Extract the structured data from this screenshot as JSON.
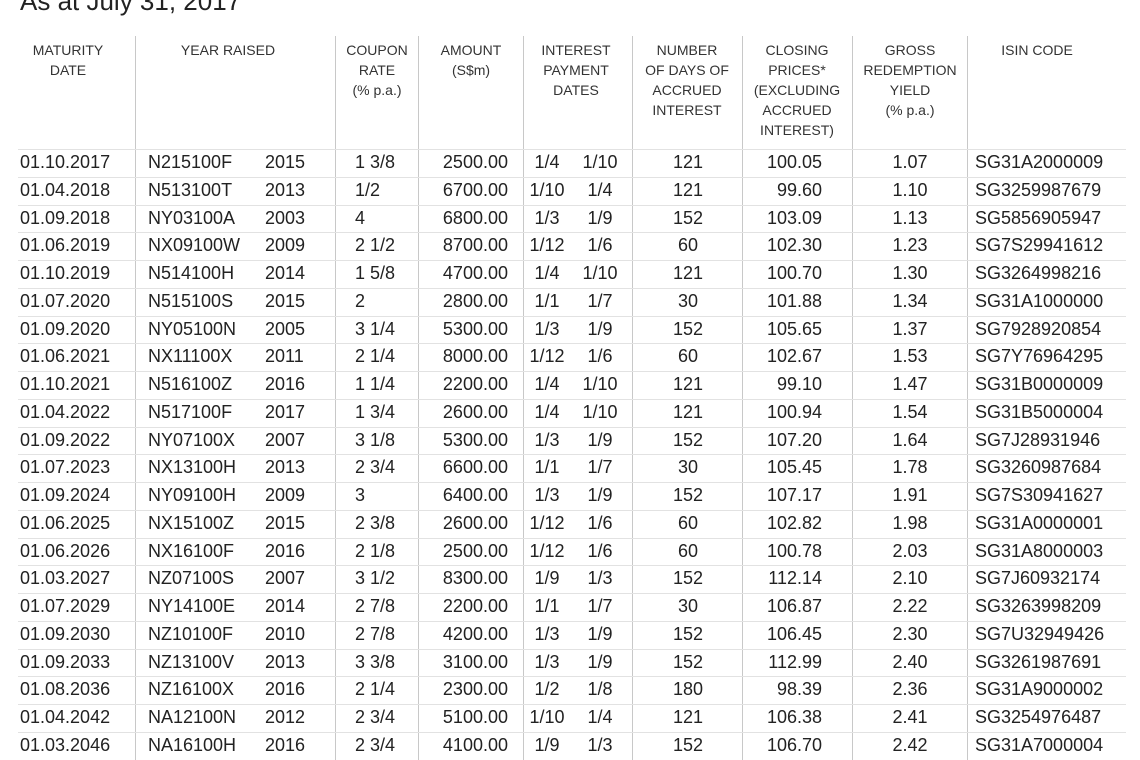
{
  "header": {
    "subtitle": "As at July 31, 2017"
  },
  "table": {
    "columns": [
      {
        "lines": [
          "MATURITY",
          "DATE"
        ]
      },
      {
        "lines": [
          "YEAR RAISED"
        ]
      },
      {
        "lines": [
          "COUPON",
          "RATE",
          "(% p.a.)"
        ]
      },
      {
        "lines": [
          "AMOUNT",
          "(S$m)"
        ]
      },
      {
        "lines": [
          "INTEREST",
          "PAYMENT",
          "DATES"
        ]
      },
      {
        "lines": [
          "NUMBER",
          "OF DAYS OF",
          "ACCRUED",
          "INTEREST"
        ]
      },
      {
        "lines": [
          "CLOSING",
          "PRICES*",
          "(EXCLUDING",
          "ACCRUED",
          "INTEREST)"
        ]
      },
      {
        "lines": [
          "GROSS",
          "REDEMPTION",
          "YIELD",
          "(% p.a.)"
        ]
      },
      {
        "lines": [
          "ISIN CODE"
        ]
      }
    ],
    "rows": [
      [
        "01.10.2017",
        "N215100F",
        "2015",
        "1 3/8",
        "2500.00",
        "1/4",
        "1/10",
        "121",
        "100.05",
        "1.07",
        "SG31A2000009"
      ],
      [
        "01.04.2018",
        "N513100T",
        "2013",
        "1/2",
        "6700.00",
        "1/10",
        "1/4",
        "121",
        "99.60",
        "1.10",
        "SG3259987679"
      ],
      [
        "01.09.2018",
        "NY03100A",
        "2003",
        "4",
        "6800.00",
        "1/3",
        "1/9",
        "152",
        "103.09",
        "1.13",
        "SG5856905947"
      ],
      [
        "01.06.2019",
        "NX09100W",
        "2009",
        "2 1/2",
        "8700.00",
        "1/12",
        "1/6",
        "60",
        "102.30",
        "1.23",
        "SG7S29941612"
      ],
      [
        "01.10.2019",
        "N514100H",
        "2014",
        "1 5/8",
        "4700.00",
        "1/4",
        "1/10",
        "121",
        "100.70",
        "1.30",
        "SG3264998216"
      ],
      [
        "01.07.2020",
        "N515100S",
        "2015",
        "2",
        "2800.00",
        "1/1",
        "1/7",
        "30",
        "101.88",
        "1.34",
        "SG31A1000000"
      ],
      [
        "01.09.2020",
        "NY05100N",
        "2005",
        "3 1/4",
        "5300.00",
        "1/3",
        "1/9",
        "152",
        "105.65",
        "1.37",
        "SG7928920854"
      ],
      [
        "01.06.2021",
        "NX11100X",
        "2011",
        "2 1/4",
        "8000.00",
        "1/12",
        "1/6",
        "60",
        "102.67",
        "1.53",
        "SG7Y76964295"
      ],
      [
        "01.10.2021",
        "N516100Z",
        "2016",
        "1 1/4",
        "2200.00",
        "1/4",
        "1/10",
        "121",
        "99.10",
        "1.47",
        "SG31B0000009"
      ],
      [
        "01.04.2022",
        "N517100F",
        "2017",
        "1 3/4",
        "2600.00",
        "1/4",
        "1/10",
        "121",
        "100.94",
        "1.54",
        "SG31B5000004"
      ],
      [
        "01.09.2022",
        "NY07100X",
        "2007",
        "3 1/8",
        "5300.00",
        "1/3",
        "1/9",
        "152",
        "107.20",
        "1.64",
        "SG7J28931946"
      ],
      [
        "01.07.2023",
        "NX13100H",
        "2013",
        "2 3/4",
        "6600.00",
        "1/1",
        "1/7",
        "30",
        "105.45",
        "1.78",
        "SG3260987684"
      ],
      [
        "01.09.2024",
        "NY09100H",
        "2009",
        "3",
        "6400.00",
        "1/3",
        "1/9",
        "152",
        "107.17",
        "1.91",
        "SG7S30941627"
      ],
      [
        "01.06.2025",
        "NX15100Z",
        "2015",
        "2 3/8",
        "2600.00",
        "1/12",
        "1/6",
        "60",
        "102.82",
        "1.98",
        "SG31A0000001"
      ],
      [
        "01.06.2026",
        "NX16100F",
        "2016",
        "2 1/8",
        "2500.00",
        "1/12",
        "1/6",
        "60",
        "100.78",
        "2.03",
        "SG31A8000003"
      ],
      [
        "01.03.2027",
        "NZ07100S",
        "2007",
        "3 1/2",
        "8300.00",
        "1/9",
        "1/3",
        "152",
        "112.14",
        "2.10",
        "SG7J60932174"
      ],
      [
        "01.07.2029",
        "NY14100E",
        "2014",
        "2 7/8",
        "2200.00",
        "1/1",
        "1/7",
        "30",
        "106.87",
        "2.22",
        "SG3263998209"
      ],
      [
        "01.09.2030",
        "NZ10100F",
        "2010",
        "2 7/8",
        "4200.00",
        "1/3",
        "1/9",
        "152",
        "106.45",
        "2.30",
        "SG7U32949426"
      ],
      [
        "01.09.2033",
        "NZ13100V",
        "2013",
        "3 3/8",
        "3100.00",
        "1/3",
        "1/9",
        "152",
        "112.99",
        "2.40",
        "SG3261987691"
      ],
      [
        "01.08.2036",
        "NZ16100X",
        "2016",
        "2 1/4",
        "2300.00",
        "1/2",
        "1/8",
        "180",
        "98.39",
        "2.36",
        "SG31A9000002"
      ],
      [
        "01.04.2042",
        "NA12100N",
        "2012",
        "2 3/4",
        "5100.00",
        "1/10",
        "1/4",
        "121",
        "106.38",
        "2.41",
        "SG3254976487"
      ],
      [
        "01.03.2046",
        "NA16100H",
        "2016",
        "2 3/4",
        "4100.00",
        "1/9",
        "1/3",
        "152",
        "106.70",
        "2.42",
        "SG31A7000004"
      ]
    ]
  }
}
